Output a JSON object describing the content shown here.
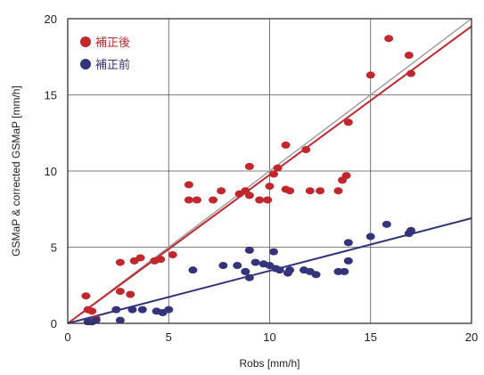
{
  "chart_data": {
    "type": "scatter",
    "title": "",
    "xlabel": "Robs [mm/h]",
    "ylabel": "GSMaP & corrected GSMaP [mm/h]",
    "xlim": [
      0,
      20
    ],
    "ylim": [
      0,
      20
    ],
    "x_ticks": [
      "0",
      "5",
      "10",
      "15",
      "20"
    ],
    "y_ticks": [
      "0",
      "5",
      "10",
      "15",
      "20"
    ],
    "grid": true,
    "legend_position": "top-left",
    "reference_line": {
      "color": "#9a9a9a",
      "x": [
        0,
        20
      ],
      "y": [
        0,
        20
      ]
    },
    "series": [
      {
        "name": "補正後",
        "color": "#c0282e",
        "points": [
          [
            0.9,
            1.8
          ],
          [
            1.0,
            0.9
          ],
          [
            1.2,
            0.8
          ],
          [
            1.4,
            0.3
          ],
          [
            2.6,
            4.0
          ],
          [
            3.3,
            4.1
          ],
          [
            3.6,
            4.3
          ],
          [
            4.3,
            4.1
          ],
          [
            4.6,
            4.2
          ],
          [
            5.2,
            4.5
          ],
          [
            2.6,
            2.1
          ],
          [
            3.1,
            1.9
          ],
          [
            6.0,
            9.1
          ],
          [
            6.0,
            8.1
          ],
          [
            6.4,
            8.1
          ],
          [
            7.2,
            8.1
          ],
          [
            7.6,
            8.7
          ],
          [
            8.5,
            8.5
          ],
          [
            8.8,
            8.7
          ],
          [
            9.0,
            8.4
          ],
          [
            9.0,
            10.3
          ],
          [
            9.5,
            8.1
          ],
          [
            9.9,
            8.1
          ],
          [
            10.0,
            9.0
          ],
          [
            10.2,
            9.8
          ],
          [
            10.4,
            10.2
          ],
          [
            10.8,
            11.7
          ],
          [
            10.8,
            8.8
          ],
          [
            11.0,
            8.7
          ],
          [
            11.8,
            11.4
          ],
          [
            12.0,
            8.7
          ],
          [
            12.5,
            8.7
          ],
          [
            13.4,
            8.7
          ],
          [
            13.6,
            9.4
          ],
          [
            13.8,
            9.7
          ],
          [
            13.9,
            13.2
          ],
          [
            15.0,
            16.3
          ],
          [
            15.9,
            18.7
          ],
          [
            16.9,
            17.6
          ],
          [
            17.0,
            16.4
          ]
        ],
        "fit": {
          "x": [
            0,
            20
          ],
          "y": [
            0,
            19.5
          ]
        }
      },
      {
        "name": "補正前",
        "color": "#33347a",
        "points": [
          [
            1.0,
            0.1
          ],
          [
            1.2,
            0.1
          ],
          [
            1.4,
            0.2
          ],
          [
            2.4,
            0.9
          ],
          [
            2.6,
            0.2
          ],
          [
            3.2,
            0.9
          ],
          [
            3.7,
            0.9
          ],
          [
            4.4,
            0.8
          ],
          [
            4.7,
            0.7
          ],
          [
            5.0,
            0.9
          ],
          [
            6.2,
            3.5
          ],
          [
            7.7,
            3.8
          ],
          [
            8.4,
            3.8
          ],
          [
            8.8,
            3.4
          ],
          [
            9.0,
            4.8
          ],
          [
            9.0,
            3.0
          ],
          [
            9.3,
            4.0
          ],
          [
            9.7,
            3.9
          ],
          [
            10.0,
            3.8
          ],
          [
            10.2,
            4.7
          ],
          [
            10.3,
            3.6
          ],
          [
            10.5,
            3.5
          ],
          [
            10.9,
            3.3
          ],
          [
            11.0,
            3.5
          ],
          [
            11.7,
            3.5
          ],
          [
            12.0,
            3.4
          ],
          [
            12.3,
            3.2
          ],
          [
            13.4,
            3.4
          ],
          [
            13.7,
            3.4
          ],
          [
            13.9,
            4.1
          ],
          [
            13.9,
            5.3
          ],
          [
            15.0,
            5.7
          ],
          [
            15.8,
            6.5
          ],
          [
            16.9,
            5.9
          ],
          [
            17.0,
            6.1
          ]
        ],
        "fit": {
          "x": [
            0,
            20
          ],
          "y": [
            0,
            6.9
          ]
        }
      }
    ]
  }
}
